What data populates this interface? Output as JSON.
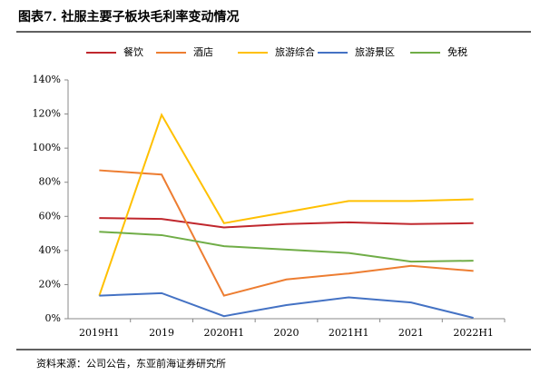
{
  "chart_data": {
    "type": "line",
    "title": "图表7.  社服主要子板块毛利率变动情况",
    "source": "资料来源：公司公告，东亚前海证券研究所",
    "categories": [
      "2019H1",
      "2019",
      "2020H1",
      "2020",
      "2021H1",
      "2021",
      "2022H1"
    ],
    "series": [
      {
        "name": "餐饮",
        "color": "#c0272d",
        "values": [
          59,
          58.5,
          53.5,
          55.5,
          56.5,
          55.5,
          56
        ]
      },
      {
        "name": "酒店",
        "color": "#ed7d31",
        "values": [
          87,
          84.5,
          13.5,
          23,
          26.5,
          31,
          28
        ]
      },
      {
        "name": "旅游综合",
        "color": "#ffc000",
        "values": [
          13.5,
          119.5,
          56,
          62.5,
          69,
          69,
          70
        ]
      },
      {
        "name": "旅游景区",
        "color": "#4472c4",
        "values": [
          13.5,
          15,
          1.5,
          8,
          12.5,
          9.5,
          0.5
        ]
      },
      {
        "name": "免税",
        "color": "#70ad47",
        "values": [
          51,
          49,
          42.5,
          40.5,
          38.5,
          33.5,
          34
        ]
      }
    ],
    "ylim": [
      0,
      140
    ],
    "yticks": [
      {
        "value": 0,
        "label": "0%"
      },
      {
        "value": 20,
        "label": "20%"
      },
      {
        "value": 40,
        "label": "40%"
      },
      {
        "value": 60,
        "label": "60%"
      },
      {
        "value": 80,
        "label": "80%"
      },
      {
        "value": 100,
        "label": "100%"
      },
      {
        "value": 120,
        "label": "120%"
      },
      {
        "value": 140,
        "label": "140%"
      }
    ],
    "grid": false,
    "legend": "top"
  }
}
